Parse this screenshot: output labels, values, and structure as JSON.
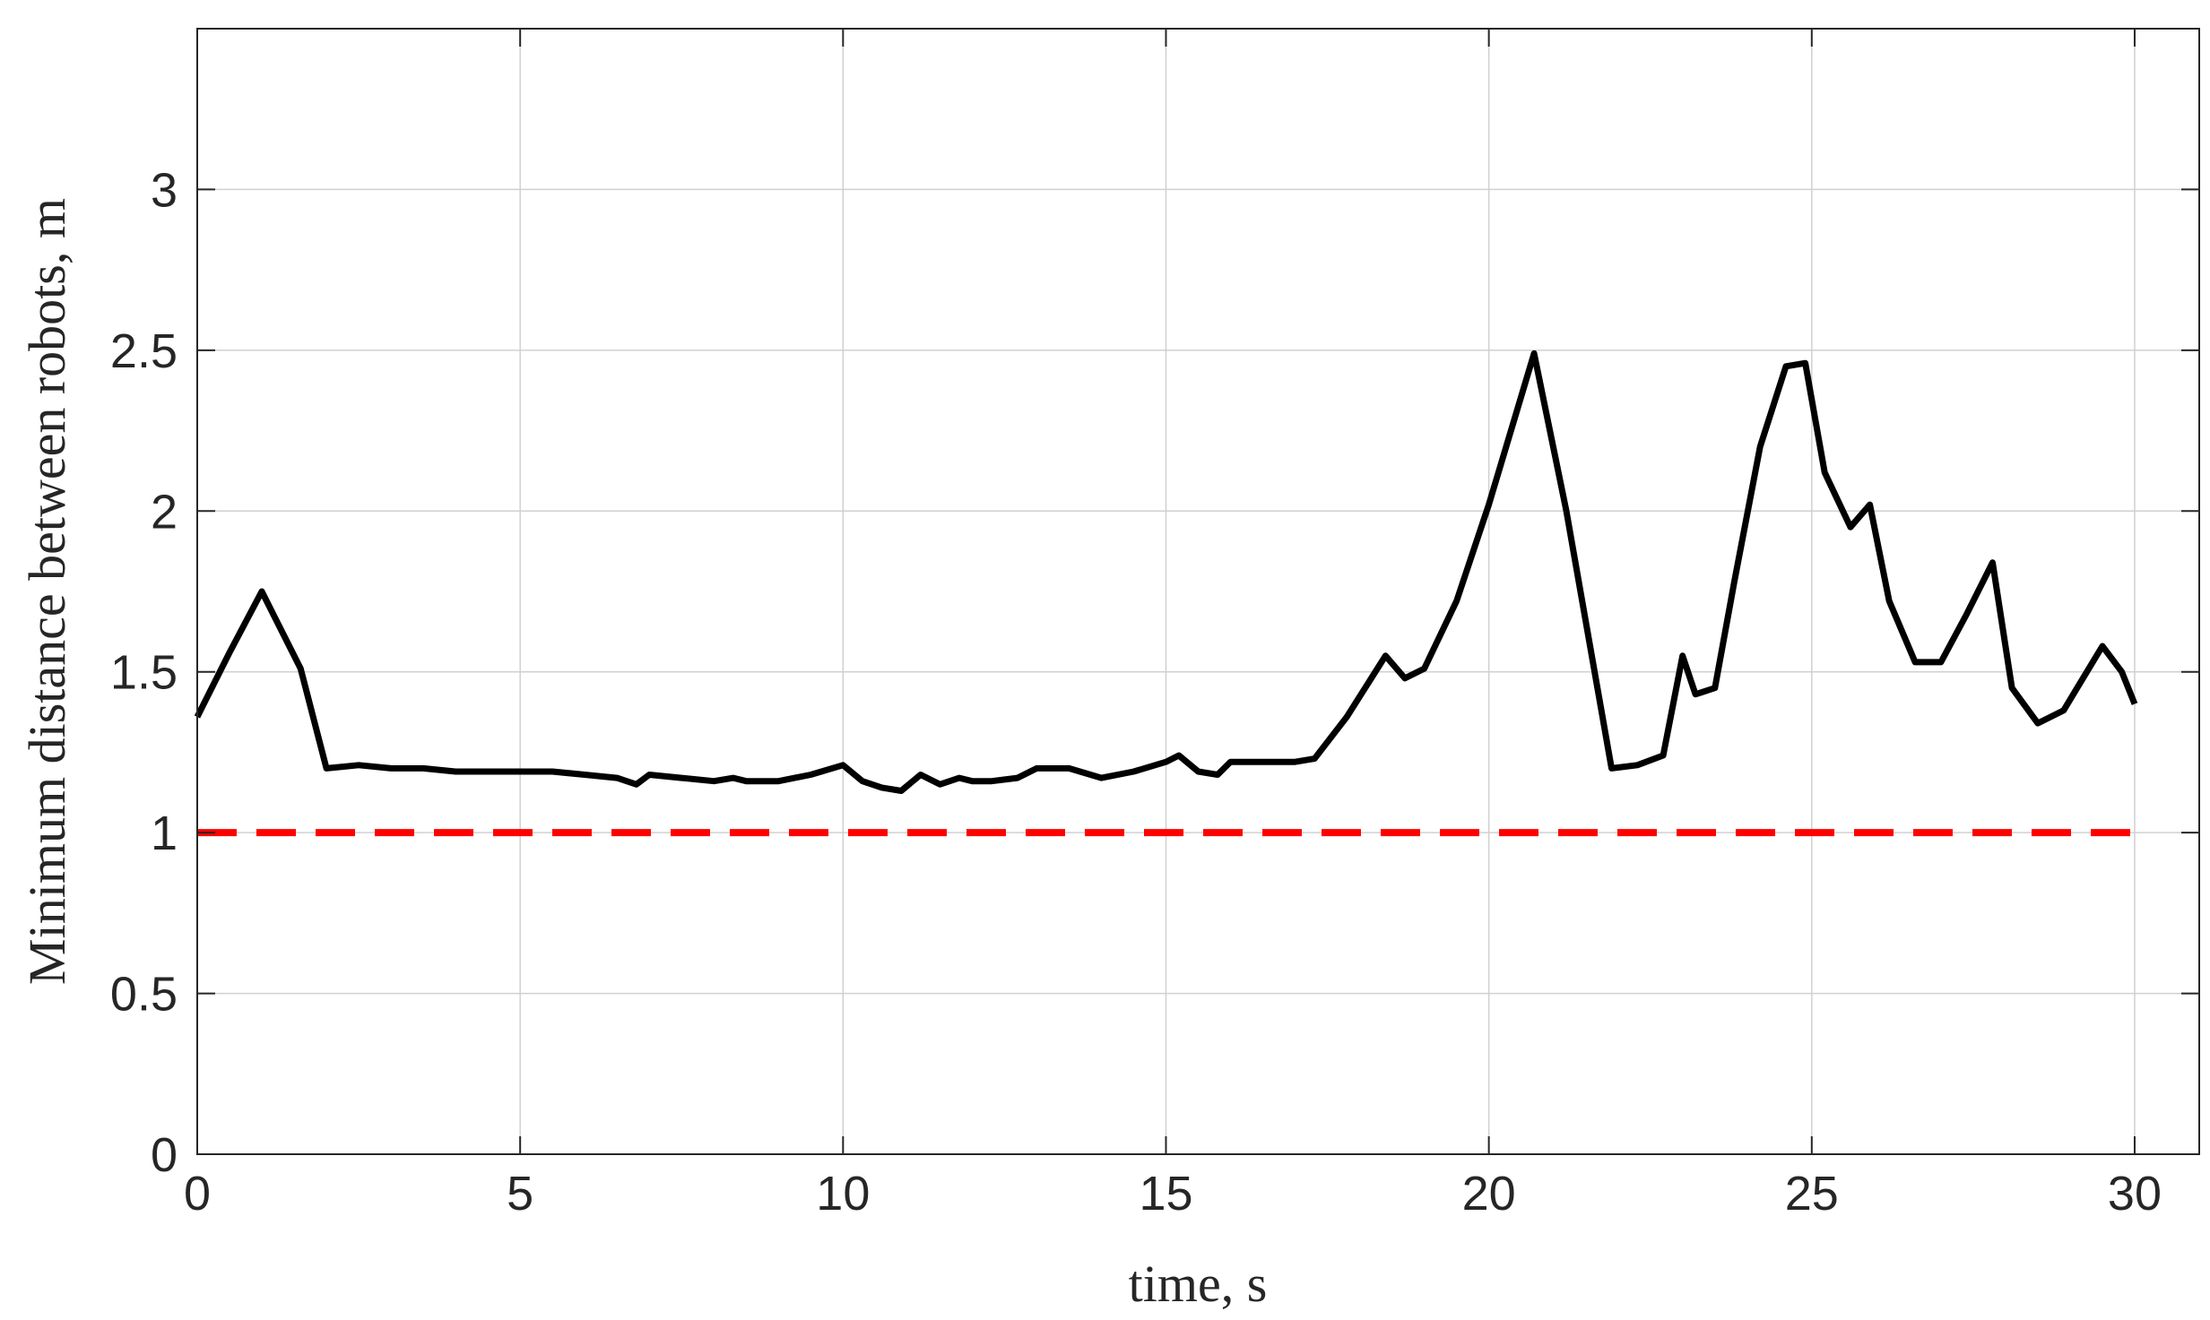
{
  "chart_data": {
    "type": "line",
    "title": "",
    "xlabel": "time, s",
    "ylabel": "Minimum distance between robots, m",
    "xlim": [
      0,
      31
    ],
    "ylim": [
      0,
      3.5
    ],
    "xticks": [
      0,
      5,
      10,
      15,
      20,
      25,
      30
    ],
    "yticks": [
      0,
      0.5,
      1,
      1.5,
      2,
      2.5,
      3
    ],
    "xtick_labels": [
      "0",
      "5",
      "10",
      "15",
      "20",
      "25",
      "30"
    ],
    "ytick_labels": [
      "0",
      "0.5",
      "1",
      "1.5",
      "2",
      "2.5",
      "3"
    ],
    "grid": true,
    "series": [
      {
        "style": "solid",
        "color": "#000000",
        "x": [
          0,
          0.5,
          1.0,
          1.2,
          1.6,
          2.0,
          2.5,
          3.0,
          3.5,
          4.0,
          4.5,
          5.0,
          5.5,
          6.0,
          6.5,
          6.8,
          7.0,
          7.5,
          8.0,
          8.3,
          8.5,
          9.0,
          9.5,
          10.0,
          10.3,
          10.6,
          10.9,
          11.2,
          11.5,
          11.8,
          12.0,
          12.3,
          12.7,
          13.0,
          13.5,
          14.0,
          14.5,
          15.0,
          15.2,
          15.5,
          15.8,
          16.0,
          16.5,
          17.0,
          17.3,
          17.8,
          18.4,
          18.7,
          19.0,
          19.5,
          20.0,
          20.7,
          21.2,
          21.9,
          22.3,
          22.7,
          23.0,
          23.2,
          23.5,
          23.8,
          24.2,
          24.6,
          24.9,
          25.2,
          25.6,
          25.9,
          26.2,
          26.6,
          27.0,
          27.4,
          27.8,
          28.1,
          28.5,
          28.9,
          29.2,
          29.5,
          29.8,
          30.0
        ],
        "values": [
          1.36,
          1.56,
          1.75,
          1.67,
          1.51,
          1.2,
          1.21,
          1.2,
          1.2,
          1.19,
          1.19,
          1.19,
          1.19,
          1.18,
          1.17,
          1.15,
          1.18,
          1.17,
          1.16,
          1.17,
          1.16,
          1.16,
          1.18,
          1.21,
          1.16,
          1.14,
          1.13,
          1.18,
          1.15,
          1.17,
          1.16,
          1.16,
          1.17,
          1.2,
          1.2,
          1.17,
          1.19,
          1.22,
          1.24,
          1.19,
          1.18,
          1.22,
          1.22,
          1.22,
          1.23,
          1.36,
          1.55,
          1.48,
          1.51,
          1.72,
          2.02,
          2.49,
          2.0,
          1.2,
          1.21,
          1.24,
          1.55,
          1.43,
          1.45,
          1.78,
          2.2,
          2.45,
          2.46,
          2.12,
          1.95,
          2.02,
          1.72,
          1.53,
          1.53,
          1.68,
          1.84,
          1.45,
          1.34,
          1.38,
          1.48,
          1.58,
          1.5,
          1.4
        ]
      },
      {
        "style": "dashed",
        "color": "#ff0000",
        "x": [
          0,
          30
        ],
        "values": [
          1,
          1
        ]
      }
    ]
  }
}
